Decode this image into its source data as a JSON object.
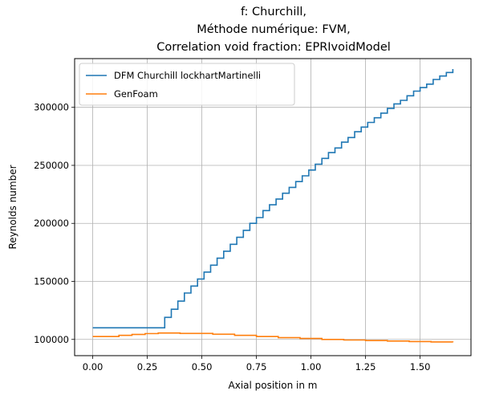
{
  "chart_data": {
    "type": "line",
    "title": [
      "f: Churchill,",
      "Méthode numérique: FVM,",
      "Correlation void fraction: EPRIvoidModel"
    ],
    "xlabel": "Axial position in m",
    "ylabel": "Reynolds number",
    "xlim": [
      -0.083,
      1.733
    ],
    "ylim": [
      86000,
      342000
    ],
    "xticks": [
      0.0,
      0.25,
      0.5,
      0.75,
      1.0,
      1.25,
      1.5
    ],
    "xtick_labels": [
      "0.00",
      "0.25",
      "0.50",
      "0.75",
      "1.00",
      "1.25",
      "1.50"
    ],
    "yticks": [
      100000,
      150000,
      200000,
      250000,
      300000
    ],
    "ytick_labels": [
      "100000",
      "150000",
      "200000",
      "250000",
      "300000"
    ],
    "grid": true,
    "legend_position": "top-left",
    "series": [
      {
        "name": "DFM Churchill lockhartMartinelli",
        "color": "#1f77b4",
        "step": true,
        "x": [
          0.0,
          0.33,
          0.36,
          0.39,
          0.42,
          0.45,
          0.48,
          0.51,
          0.54,
          0.57,
          0.6,
          0.63,
          0.66,
          0.69,
          0.72,
          0.75,
          0.78,
          0.81,
          0.84,
          0.87,
          0.9,
          0.93,
          0.96,
          0.99,
          1.02,
          1.05,
          1.08,
          1.11,
          1.14,
          1.17,
          1.2,
          1.23,
          1.26,
          1.29,
          1.32,
          1.35,
          1.38,
          1.41,
          1.44,
          1.47,
          1.5,
          1.53,
          1.56,
          1.59,
          1.62,
          1.65
        ],
        "y": [
          110000,
          119000,
          126000,
          133000,
          140000,
          146000,
          152000,
          158000,
          164000,
          170000,
          176000,
          182000,
          188000,
          194000,
          200000,
          205000,
          211000,
          216000,
          221000,
          226000,
          231000,
          236000,
          241000,
          246000,
          251000,
          256000,
          261000,
          265000,
          270000,
          274000,
          279000,
          283000,
          287000,
          291000,
          295000,
          299000,
          303000,
          306000,
          310000,
          314000,
          317000,
          320000,
          324000,
          327000,
          330000,
          333000
        ]
      },
      {
        "name": "GenFoam",
        "color": "#ff7f0e",
        "step": true,
        "x": [
          0.0,
          0.12,
          0.18,
          0.24,
          0.3,
          0.4,
          0.55,
          0.65,
          0.75,
          0.85,
          0.95,
          1.05,
          1.15,
          1.25,
          1.35,
          1.45,
          1.55,
          1.65
        ],
        "y": [
          102500,
          103500,
          104300,
          105000,
          105500,
          105200,
          104500,
          103500,
          102500,
          101500,
          100800,
          100000,
          99500,
          99000,
          98600,
          98200,
          97800,
          97500
        ]
      }
    ]
  }
}
